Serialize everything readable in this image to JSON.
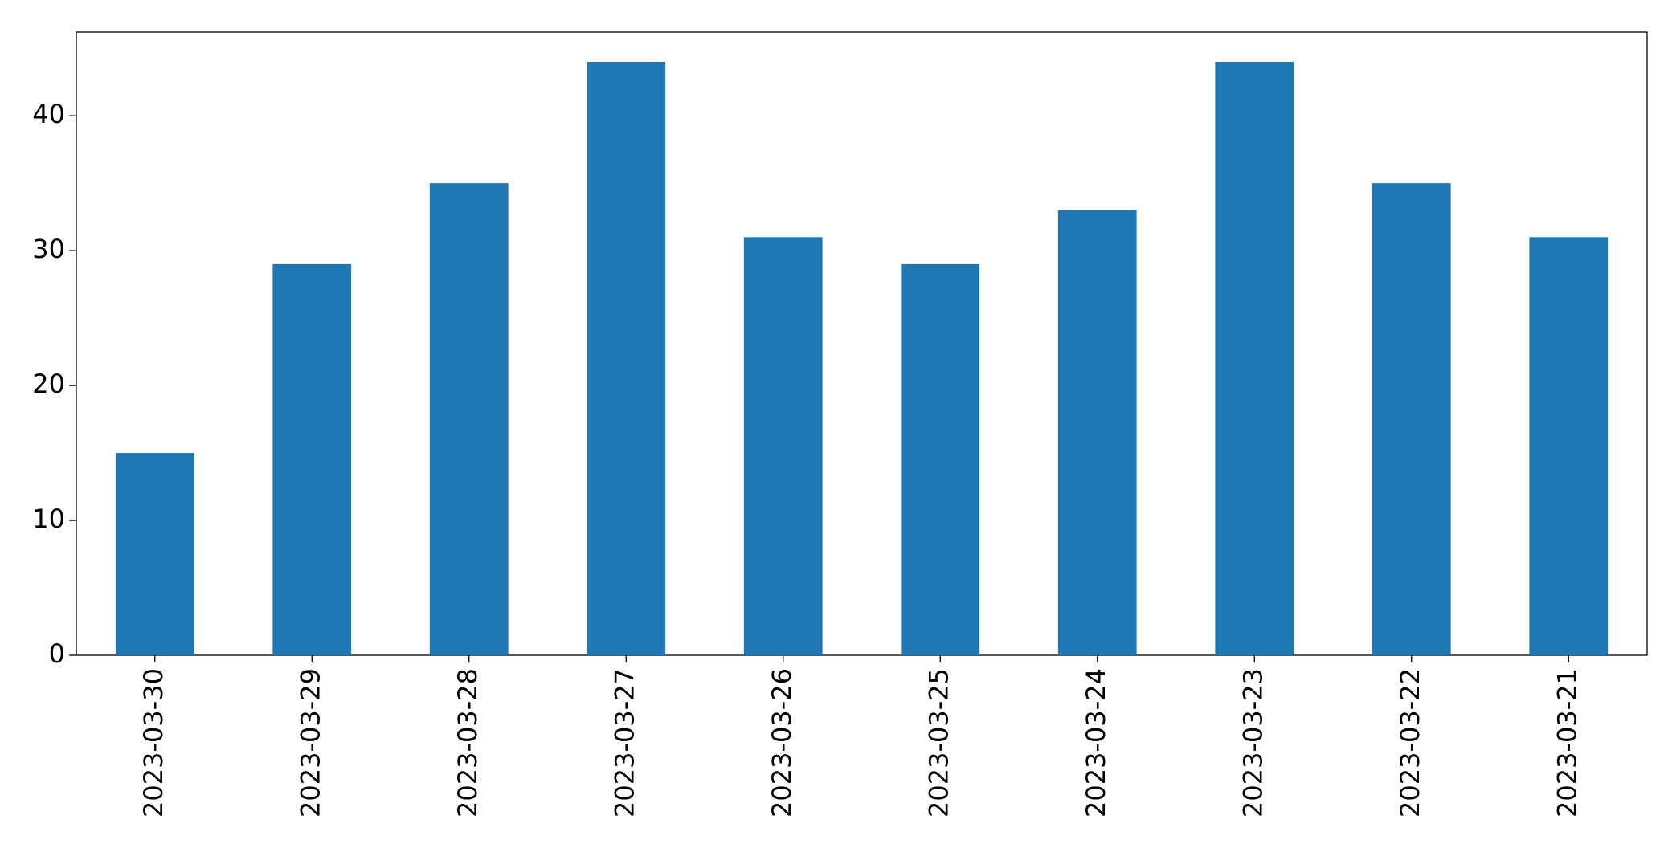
{
  "chart_data": {
    "type": "bar",
    "categories": [
      "2023-03-30",
      "2023-03-29",
      "2023-03-28",
      "2023-03-27",
      "2023-03-26",
      "2023-03-25",
      "2023-03-24",
      "2023-03-23",
      "2023-03-22",
      "2023-03-21"
    ],
    "values": [
      15,
      29,
      35,
      44,
      31,
      29,
      33,
      44,
      35,
      31
    ],
    "color": "#1f77b4",
    "ylim": [
      0,
      46.2
    ],
    "yticks": [
      0,
      10,
      20,
      30,
      40
    ],
    "grid": false
  }
}
